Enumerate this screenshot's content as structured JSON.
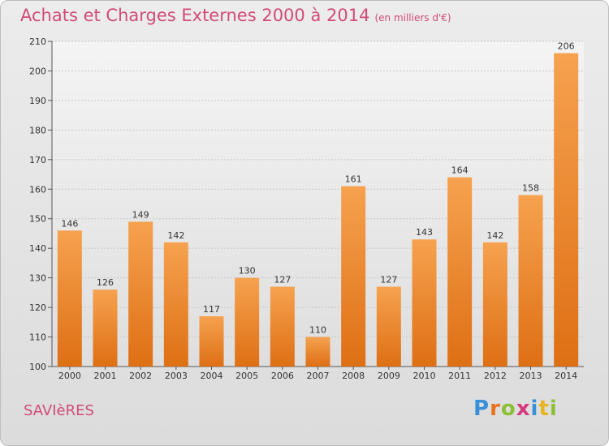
{
  "header": {
    "title": "Achats et Charges Externes 2000 à 2014",
    "unit": "(en milliers d'€)"
  },
  "commune": "SAVIèRES",
  "logo": {
    "letters": [
      "P",
      "r",
      "o",
      "x",
      "i",
      "t",
      "i"
    ],
    "colors": [
      "#3a8fd8",
      "#e8731f",
      "#8dbf35",
      "#d43a7c",
      "#3a8fd8",
      "#e8b51f",
      "#8dbf35"
    ]
  },
  "chart_data": {
    "type": "bar",
    "categories": [
      "2000",
      "2001",
      "2002",
      "2003",
      "2004",
      "2005",
      "2006",
      "2007",
      "2008",
      "2009",
      "2010",
      "2011",
      "2012",
      "2013",
      "2014"
    ],
    "values": [
      146,
      126,
      149,
      142,
      117,
      130,
      127,
      110,
      161,
      127,
      143,
      164,
      142,
      158,
      206
    ],
    "ylim": [
      100,
      210
    ],
    "yticks": [
      100,
      110,
      120,
      130,
      140,
      150,
      160,
      170,
      180,
      190,
      200,
      210
    ],
    "grid": true,
    "bar_color": "#ef8a2a"
  }
}
